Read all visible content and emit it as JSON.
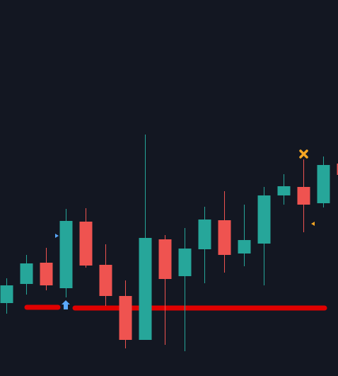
{
  "chart_data": {
    "type": "candlestick",
    "ylim": [
      0,
      531
    ],
    "up_color": "#26a69a",
    "down_color": "#ef5350",
    "open": [
      103,
      130,
      160,
      124,
      218,
      157,
      113,
      51,
      193,
      141,
      179,
      220,
      173,
      187,
      255,
      267,
      244,
      300
    ],
    "high": [
      138,
      171,
      181,
      236,
      237,
      186,
      135,
      341,
      199,
      209,
      239,
      261,
      242,
      267,
      285,
      306,
      310,
      305
    ],
    "low": [
      88,
      115,
      121,
      111,
      153,
      99,
      39,
      51,
      44,
      35,
      131,
      146,
      155,
      128,
      242,
      203,
      238,
      284
    ],
    "close": [
      128,
      159,
      128,
      219,
      156,
      113,
      51,
      195,
      137,
      180,
      221,
      171,
      192,
      255,
      268,
      242,
      298,
      284
    ]
  }
}
